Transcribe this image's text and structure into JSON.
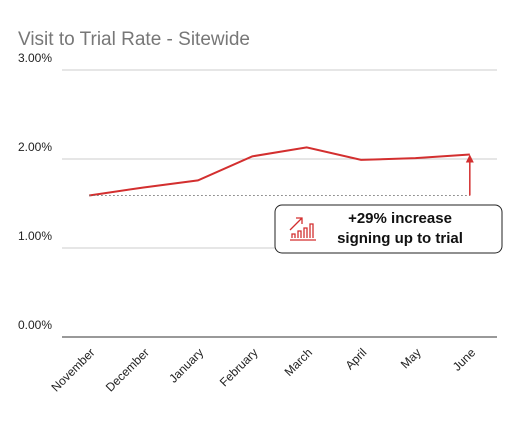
{
  "chart_data": {
    "type": "line",
    "title": "Visit to Trial Rate - Sitewide",
    "categories": [
      "November",
      "December",
      "January",
      "February",
      "March",
      "April",
      "May",
      "June"
    ],
    "series": [
      {
        "name": "Visit to Trial Rate",
        "color": "#d32f2f",
        "values": [
          1.59,
          1.68,
          1.76,
          2.03,
          2.13,
          1.99,
          2.01,
          2.05
        ]
      }
    ],
    "ylim": [
      0,
      3
    ],
    "yticks": [
      {
        "value": 0,
        "label": "0.00%"
      },
      {
        "value": 1,
        "label": "1.00%"
      },
      {
        "value": 2,
        "label": "2.00%"
      },
      {
        "value": 3,
        "label": "3.00%"
      }
    ],
    "grid": true,
    "annotation": [
      "+29% increase",
      "signing up to trial"
    ]
  }
}
